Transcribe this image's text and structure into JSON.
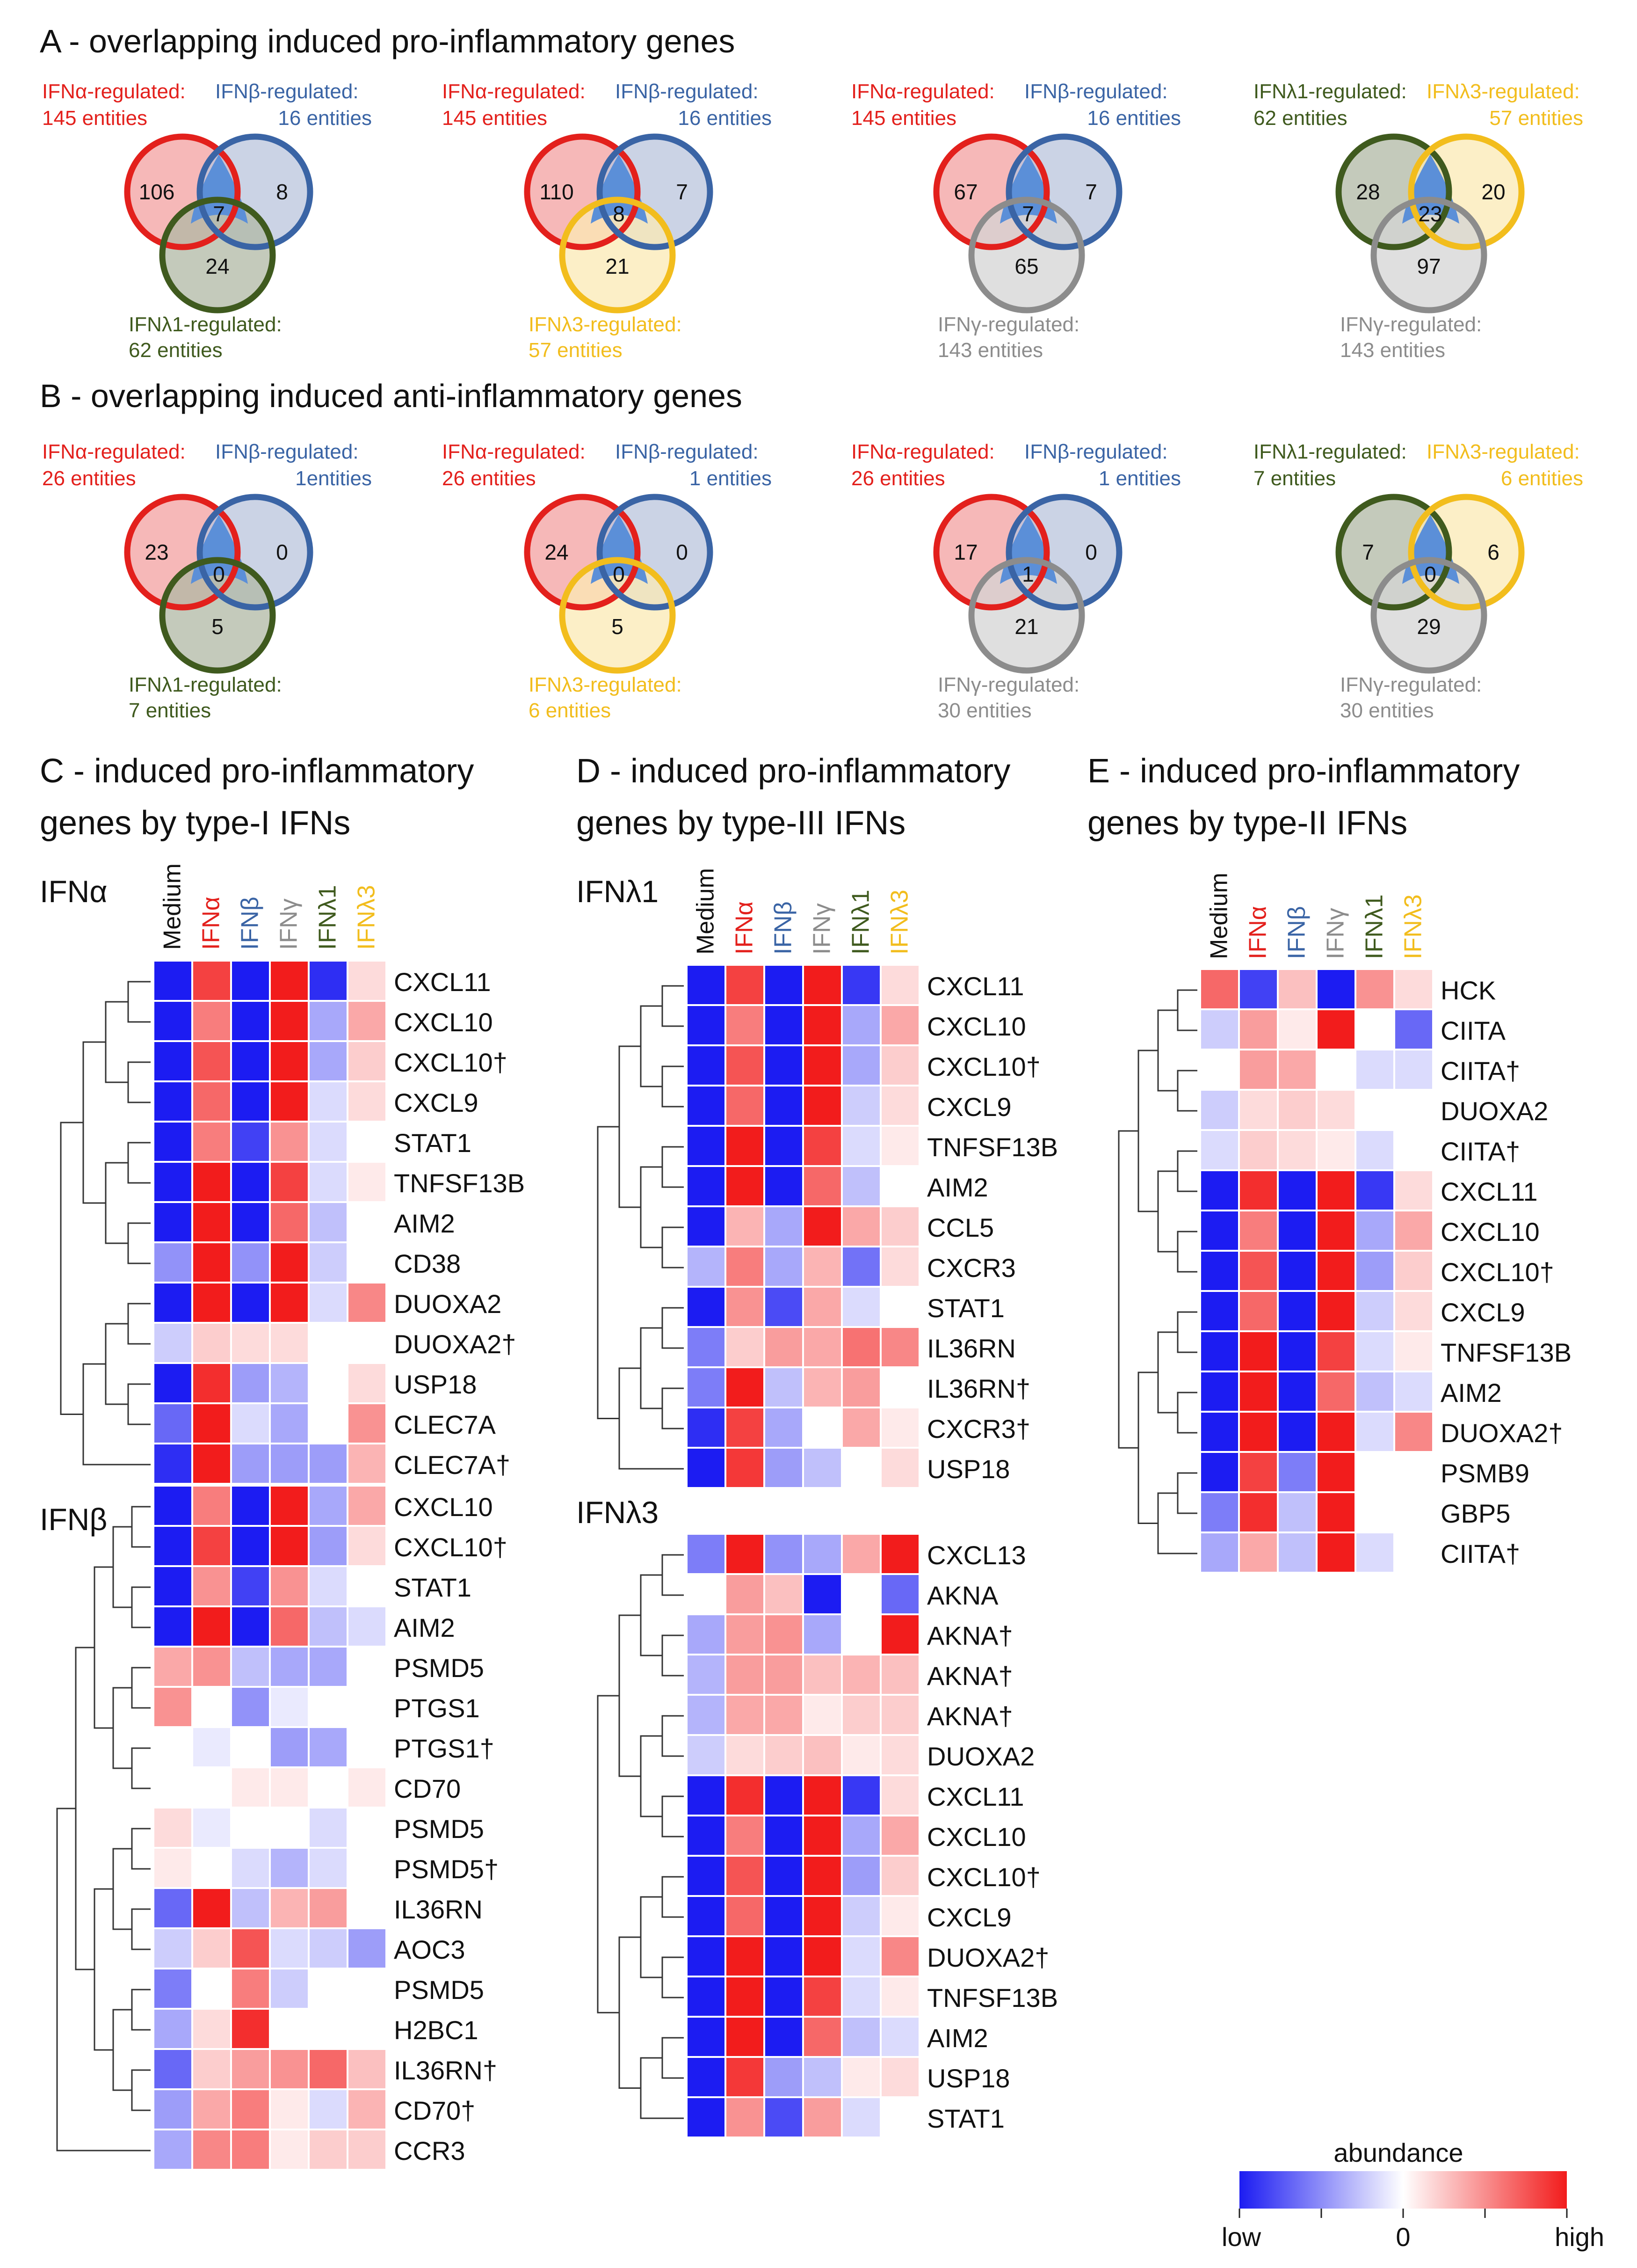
{
  "colors": {
    "IFNa": "#e3201c",
    "IFNb": "#3a64a5",
    "IFNl1": "#3f5a1e",
    "IFNl3": "#f2bd1d",
    "IFNg": "#8c8c8c",
    "IFNa_fill": "#f3a0a0",
    "IFNb_fill": "#b9c4dc",
    "IFNl1_fill": "#b0b8a4",
    "IFNl3_fill": "#fbe9b4",
    "IFNg_fill": "#d4d4d4",
    "center": "#5b8fd8",
    "heat_low": "#1c1cf2",
    "heat_mid": "#ffffff",
    "heat_high": "#f21c1c"
  },
  "sections": {
    "A": "A - overlapping induced pro-inflammatory genes",
    "B": "B - overlapping induced anti-inflammatory genes",
    "C": [
      "C - induced pro-inflammatory",
      "genes by type-I IFNs"
    ],
    "D": [
      "D - induced pro-inflammatory",
      "genes by type-III IFNs"
    ],
    "E": [
      "E - induced pro-inflammatory",
      "genes by type-II IFNs"
    ]
  },
  "venns": [
    {
      "row": "A",
      "col": 0,
      "sets": [
        {
          "key": "IFNa",
          "label": "IFNα-regulated:",
          "count": "145 entities"
        },
        {
          "key": "IFNb",
          "label": "IFNβ-regulated:",
          "count": "16 entities"
        },
        {
          "key": "IFNl1",
          "label": "IFNλ1-regulated:",
          "count": "62 entities"
        }
      ],
      "n": [
        "106",
        "8",
        "7",
        "24"
      ]
    },
    {
      "row": "A",
      "col": 1,
      "sets": [
        {
          "key": "IFNa",
          "label": "IFNα-regulated:",
          "count": "145 entities"
        },
        {
          "key": "IFNb",
          "label": "IFNβ-regulated:",
          "count": "16 entities"
        },
        {
          "key": "IFNl3",
          "label": "IFNλ3-regulated:",
          "count": "57 entities"
        }
      ],
      "n": [
        "110",
        "7",
        "8",
        "21"
      ]
    },
    {
      "row": "A",
      "col": 2,
      "sets": [
        {
          "key": "IFNa",
          "label": "IFNα-regulated:",
          "count": "145 entities"
        },
        {
          "key": "IFNb",
          "label": "IFNβ-regulated:",
          "count": "16 entities"
        },
        {
          "key": "IFNg",
          "label": "IFNγ-regulated:",
          "count": "143 entities"
        }
      ],
      "n": [
        "67",
        "7",
        "7",
        "65"
      ]
    },
    {
      "row": "A",
      "col": 3,
      "sets": [
        {
          "key": "IFNl1",
          "label": "IFNλ1-regulated:",
          "count": "62 entities"
        },
        {
          "key": "IFNl3",
          "label": "IFNλ3-regulated:",
          "count": "57 entities"
        },
        {
          "key": "IFNg",
          "label": "IFNγ-regulated:",
          "count": "143 entities"
        }
      ],
      "n": [
        "28",
        "20",
        "23",
        "97"
      ]
    },
    {
      "row": "B",
      "col": 0,
      "sets": [
        {
          "key": "IFNa",
          "label": "IFNα-regulated:",
          "count": "26 entities"
        },
        {
          "key": "IFNb",
          "label": "IFNβ-regulated:",
          "count": "1entities"
        },
        {
          "key": "IFNl1",
          "label": "IFNλ1-regulated:",
          "count": "7 entities"
        }
      ],
      "n": [
        "23",
        "0",
        "0",
        "5"
      ]
    },
    {
      "row": "B",
      "col": 1,
      "sets": [
        {
          "key": "IFNa",
          "label": "IFNα-regulated:",
          "count": "26 entities"
        },
        {
          "key": "IFNb",
          "label": "IFNβ-regulated:",
          "count": "1 entities"
        },
        {
          "key": "IFNl3",
          "label": "IFNλ3-regulated:",
          "count": "6 entities"
        }
      ],
      "n": [
        "24",
        "0",
        "0",
        "5"
      ]
    },
    {
      "row": "B",
      "col": 2,
      "sets": [
        {
          "key": "IFNa",
          "label": "IFNα-regulated:",
          "count": "26 entities"
        },
        {
          "key": "IFNb",
          "label": "IFNβ-regulated:",
          "count": "1 entities"
        },
        {
          "key": "IFNg",
          "label": "IFNγ-regulated:",
          "count": "30 entities"
        }
      ],
      "n": [
        "17",
        "0",
        "1",
        "21"
      ]
    },
    {
      "row": "B",
      "col": 3,
      "sets": [
        {
          "key": "IFNl1",
          "label": "IFNλ1-regulated:",
          "count": "7 entities"
        },
        {
          "key": "IFNl3",
          "label": "IFNλ3-regulated:",
          "count": "6 entities"
        },
        {
          "key": "IFNg",
          "label": "IFNγ-regulated:",
          "count": "30 entities"
        }
      ],
      "n": [
        "7",
        "6",
        "0",
        "29"
      ]
    }
  ],
  "columns": [
    {
      "label": "Medium",
      "key": "Medium"
    },
    {
      "label": "IFNα",
      "key": "IFNa"
    },
    {
      "label": "IFNβ",
      "key": "IFNb"
    },
    {
      "label": "IFNγ",
      "key": "IFNg"
    },
    {
      "label": "IFNλ1",
      "key": "IFNl1"
    },
    {
      "label": "IFNλ3",
      "key": "IFNl3"
    }
  ],
  "heatmaps": [
    {
      "id": "IFNa",
      "title": "IFNα",
      "rows": [
        {
          "gene": "CXCL11",
          "v": [
            -1,
            0.8,
            -1,
            1,
            -0.9,
            0.1
          ]
        },
        {
          "gene": "CXCL10",
          "v": [
            -1,
            0.5,
            -1,
            1,
            -0.3,
            0.3
          ]
        },
        {
          "gene": "CXCL10†",
          "v": [
            -1,
            0.7,
            -1,
            1,
            -0.3,
            0.15
          ]
        },
        {
          "gene": "CXCL9",
          "v": [
            -1,
            0.6,
            -1,
            1,
            -0.1,
            0.1
          ]
        },
        {
          "gene": "STAT1",
          "v": [
            -1,
            0.5,
            -0.8,
            0.4,
            -0.1,
            0
          ]
        },
        {
          "gene": "TNFSF13B",
          "v": [
            -1,
            1,
            -1,
            0.8,
            -0.1,
            0.05
          ]
        },
        {
          "gene": "AIM2",
          "v": [
            -1,
            1,
            -1,
            0.6,
            -0.2,
            0
          ]
        },
        {
          "gene": "CD38",
          "v": [
            -0.4,
            1,
            -0.4,
            1,
            -0.15,
            0
          ]
        },
        {
          "gene": "DUOXA2",
          "v": [
            -1,
            1,
            -1,
            1,
            -0.1,
            0.45
          ]
        },
        {
          "gene": "DUOXA2†",
          "v": [
            -0.15,
            0.15,
            0.1,
            0.1,
            0,
            0
          ]
        },
        {
          "gene": "USP18",
          "v": [
            -1,
            0.9,
            -0.35,
            -0.25,
            0,
            0.1
          ]
        },
        {
          "gene": "CLEC7A",
          "v": [
            -0.6,
            1,
            -0.1,
            -0.3,
            0,
            0.4
          ]
        },
        {
          "gene": "CLEC7A†",
          "v": [
            -0.9,
            1,
            -0.35,
            -0.35,
            -0.35,
            0.25
          ]
        }
      ]
    },
    {
      "id": "IFNb",
      "title": "IFNβ",
      "rows": [
        {
          "gene": "CXCL10",
          "v": [
            -1,
            0.5,
            -1,
            1,
            -0.3,
            0.3
          ]
        },
        {
          "gene": "CXCL10†",
          "v": [
            -1,
            0.8,
            -1,
            1,
            -0.35,
            0.1
          ]
        },
        {
          "gene": "STAT1",
          "v": [
            -1,
            0.4,
            -0.8,
            0.4,
            -0.1,
            0
          ]
        },
        {
          "gene": "AIM2",
          "v": [
            -1,
            1,
            -1,
            0.6,
            -0.2,
            -0.1
          ]
        },
        {
          "gene": "PSMD5",
          "v": [
            0.3,
            0.4,
            -0.2,
            -0.3,
            -0.3,
            0
          ]
        },
        {
          "gene": "PTGS1",
          "v": [
            0.4,
            0,
            -0.4,
            -0.05,
            0,
            0
          ]
        },
        {
          "gene": "PTGS1†",
          "v": [
            0,
            -0.05,
            0,
            -0.35,
            -0.3,
            0
          ]
        },
        {
          "gene": "CD70",
          "v": [
            0,
            0,
            0.05,
            0.05,
            0,
            0.05
          ]
        },
        {
          "gene": "PSMD5",
          "v": [
            0.1,
            -0.05,
            0,
            0,
            -0.1,
            0
          ]
        },
        {
          "gene": "PSMD5†",
          "v": [
            0.05,
            0,
            -0.1,
            -0.25,
            -0.1,
            0
          ]
        },
        {
          "gene": "IL36RN",
          "v": [
            -0.6,
            1,
            -0.2,
            0.25,
            0.35,
            0
          ]
        },
        {
          "gene": "AOC3",
          "v": [
            -0.15,
            0.15,
            0.7,
            -0.1,
            -0.15,
            -0.35
          ]
        },
        {
          "gene": "PSMD5",
          "v": [
            -0.5,
            0,
            0.5,
            -0.15,
            0,
            0
          ]
        },
        {
          "gene": "H2BC1",
          "v": [
            -0.3,
            0.1,
            0.9,
            0,
            0,
            0
          ]
        },
        {
          "gene": "IL36RN†",
          "v": [
            -0.6,
            0.15,
            0.35,
            0.4,
            0.6,
            0.2
          ]
        },
        {
          "gene": "CD70†",
          "v": [
            -0.35,
            0.3,
            0.5,
            0.05,
            -0.1,
            0.25
          ]
        },
        {
          "gene": "CCR3",
          "v": [
            -0.3,
            0.45,
            0.5,
            0.05,
            0.15,
            0.15
          ]
        }
      ]
    },
    {
      "id": "IFNl1",
      "title": "IFNλ1",
      "rows": [
        {
          "gene": "CXCL11",
          "v": [
            -1,
            0.8,
            -1,
            1,
            -0.85,
            0.1
          ]
        },
        {
          "gene": "CXCL10",
          "v": [
            -1,
            0.5,
            -1,
            1,
            -0.3,
            0.3
          ]
        },
        {
          "gene": "CXCL10†",
          "v": [
            -1,
            0.7,
            -1,
            1,
            -0.3,
            0.15
          ]
        },
        {
          "gene": "CXCL9",
          "v": [
            -1,
            0.6,
            -1,
            1,
            -0.15,
            0.1
          ]
        },
        {
          "gene": "TNFSF13B",
          "v": [
            -1,
            1,
            -1,
            0.8,
            -0.1,
            0.05
          ]
        },
        {
          "gene": "AIM2",
          "v": [
            -1,
            1,
            -1,
            0.6,
            -0.2,
            0
          ]
        },
        {
          "gene": "CCL5",
          "v": [
            -1,
            0.25,
            -0.3,
            1,
            0.3,
            0.15
          ]
        },
        {
          "gene": "CXCR3",
          "v": [
            -0.25,
            0.5,
            -0.3,
            0.25,
            -0.55,
            0.1
          ]
        },
        {
          "gene": "STAT1",
          "v": [
            -1,
            0.4,
            -0.75,
            0.3,
            -0.1,
            0
          ]
        },
        {
          "gene": "IL36RN",
          "v": [
            -0.5,
            0.15,
            0.35,
            0.3,
            0.55,
            0.45
          ]
        },
        {
          "gene": "IL36RN†",
          "v": [
            -0.5,
            1,
            -0.2,
            0.25,
            0.35,
            0
          ]
        },
        {
          "gene": "CXCR3†",
          "v": [
            -0.9,
            0.8,
            -0.3,
            0,
            0.3,
            0.05
          ]
        },
        {
          "gene": "USP18",
          "v": [
            -1,
            0.85,
            -0.35,
            -0.2,
            0,
            0.1
          ]
        }
      ]
    },
    {
      "id": "IFNl3",
      "title": "IFNλ3",
      "rows": [
        {
          "gene": "CXCL13",
          "v": [
            -0.5,
            1,
            -0.4,
            -0.3,
            0.3,
            1
          ]
        },
        {
          "gene": "AKNA",
          "v": [
            0,
            0.35,
            0.2,
            -1,
            0,
            -0.6
          ]
        },
        {
          "gene": "AKNA†",
          "v": [
            -0.3,
            0.35,
            0.4,
            -0.3,
            0,
            1
          ]
        },
        {
          "gene": "AKNA†",
          "v": [
            -0.25,
            0.35,
            0.35,
            0.2,
            0.25,
            0.2
          ]
        },
        {
          "gene": "AKNA†",
          "v": [
            -0.25,
            0.3,
            0.3,
            0.05,
            0.15,
            0.15
          ]
        },
        {
          "gene": "DUOXA2",
          "v": [
            -0.15,
            0.1,
            0.15,
            0.2,
            0.05,
            0.1
          ]
        },
        {
          "gene": "CXCL11",
          "v": [
            -1,
            0.9,
            -1,
            1,
            -0.85,
            0.1
          ]
        },
        {
          "gene": "CXCL10",
          "v": [
            -1,
            0.5,
            -1,
            1,
            -0.3,
            0.3
          ]
        },
        {
          "gene": "CXCL10†",
          "v": [
            -1,
            0.7,
            -1,
            1,
            -0.35,
            0.15
          ]
        },
        {
          "gene": "CXCL9",
          "v": [
            -1,
            0.6,
            -1,
            1,
            -0.15,
            0.05
          ]
        },
        {
          "gene": "DUOXA2†",
          "v": [
            -1,
            1,
            -1,
            1,
            -0.1,
            0.45
          ]
        },
        {
          "gene": "TNFSF13B",
          "v": [
            -1,
            1,
            -1,
            0.8,
            -0.1,
            0.05
          ]
        },
        {
          "gene": "AIM2",
          "v": [
            -1,
            1,
            -1,
            0.6,
            -0.2,
            -0.1
          ]
        },
        {
          "gene": "USP18",
          "v": [
            -1,
            0.85,
            -0.35,
            -0.2,
            0.05,
            0.1
          ]
        },
        {
          "gene": "STAT1",
          "v": [
            -1,
            0.4,
            -0.75,
            0.35,
            -0.1,
            0
          ]
        }
      ]
    },
    {
      "id": "E",
      "title": "",
      "rows": [
        {
          "gene": "HCK",
          "v": [
            0.6,
            -0.8,
            0.2,
            -1,
            0.4,
            0.1
          ]
        },
        {
          "gene": "CIITA",
          "v": [
            -0.15,
            0.35,
            0.05,
            1,
            0,
            -0.6
          ]
        },
        {
          "gene": "CIITA†",
          "v": [
            0,
            0.35,
            0.3,
            0,
            -0.1,
            -0.1
          ]
        },
        {
          "gene": "DUOXA2",
          "v": [
            -0.15,
            0.1,
            0.15,
            0.1,
            0,
            0
          ]
        },
        {
          "gene": "CIITA†",
          "v": [
            -0.1,
            0.15,
            0.1,
            0.05,
            -0.1,
            0
          ]
        },
        {
          "gene": "CXCL11",
          "v": [
            -1,
            0.9,
            -1,
            1,
            -0.85,
            0.1
          ]
        },
        {
          "gene": "CXCL10",
          "v": [
            -1,
            0.5,
            -1,
            1,
            -0.3,
            0.3
          ]
        },
        {
          "gene": "CXCL10†",
          "v": [
            -1,
            0.7,
            -1,
            1,
            -0.35,
            0.15
          ]
        },
        {
          "gene": "CXCL9",
          "v": [
            -1,
            0.6,
            -1,
            1,
            -0.15,
            0.1
          ]
        },
        {
          "gene": "TNFSF13B",
          "v": [
            -1,
            1,
            -1,
            0.8,
            -0.1,
            0.05
          ]
        },
        {
          "gene": "AIM2",
          "v": [
            -1,
            1,
            -1,
            0.6,
            -0.2,
            -0.1
          ]
        },
        {
          "gene": "DUOXA2†",
          "v": [
            -1,
            1,
            -1,
            1,
            -0.1,
            0.45
          ]
        },
        {
          "gene": "PSMB9",
          "v": [
            -1,
            0.8,
            -0.5,
            1,
            0,
            0
          ]
        },
        {
          "gene": "GBP5",
          "v": [
            -0.5,
            0.9,
            -0.2,
            1,
            0,
            0
          ]
        },
        {
          "gene": "CIITA†",
          "v": [
            -0.3,
            0.3,
            -0.2,
            1,
            -0.1,
            0
          ]
        }
      ]
    }
  ],
  "legend": {
    "title": "abundance",
    "low": "low",
    "mid": "0",
    "high": "high"
  }
}
